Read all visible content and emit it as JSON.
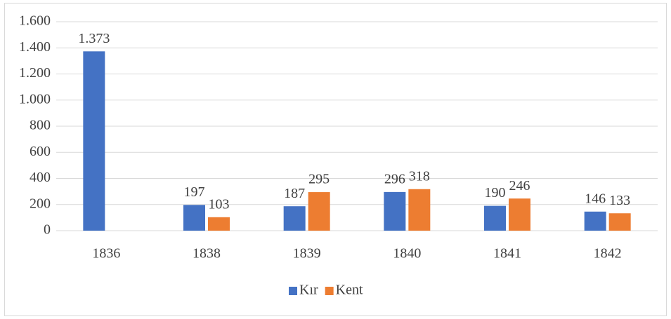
{
  "chart_data": {
    "type": "bar",
    "categories": [
      "1836",
      "1838",
      "1839",
      "1840",
      "1841",
      "1842"
    ],
    "series": [
      {
        "name": "Kır",
        "color": "#4472c4",
        "values": [
          1373,
          197,
          187,
          296,
          190,
          146
        ],
        "value_labels": [
          "1.373",
          "197",
          "187",
          "296",
          "190",
          "146"
        ]
      },
      {
        "name": "Kent",
        "color": "#ed7d31",
        "values": [
          null,
          103,
          295,
          318,
          246,
          133
        ]
      }
    ],
    "ylim": [
      0,
      1600
    ],
    "yticks": [
      0,
      200,
      400,
      600,
      800,
      {
        "value": 1000,
        "label": "1.000"
      },
      {
        "value": 1200,
        "label": "1.200"
      },
      {
        "value": 1400,
        "label": "1.400"
      },
      {
        "value": 1600,
        "label": "1.600"
      }
    ],
    "grid": true,
    "legend": "bottom"
  }
}
